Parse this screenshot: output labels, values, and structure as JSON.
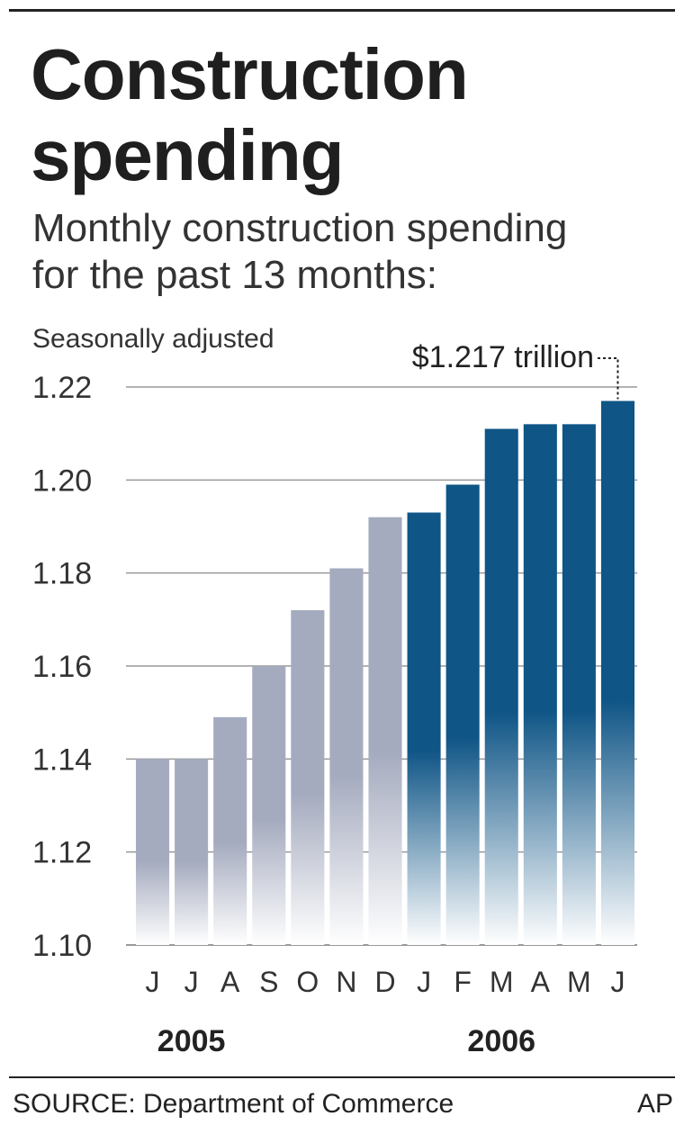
{
  "header": {
    "title_line1": "Construction",
    "title_line2": "spending",
    "subtitle_line1": "Monthly construction spending",
    "subtitle_line2": "for the past 13 months:"
  },
  "footer": {
    "source": "SOURCE: Department of Commerce",
    "credit": "AP"
  },
  "colors": {
    "bars_2005": "#a5abbf",
    "bars_2006": "#0f5586",
    "gridline": "#999999",
    "text": "#222222"
  },
  "chart_data": {
    "type": "bar",
    "note": "Seasonally adjusted",
    "categories": [
      "J",
      "J",
      "A",
      "S",
      "O",
      "N",
      "D",
      "J",
      "F",
      "M",
      "A",
      "M",
      "J"
    ],
    "values": [
      1.14,
      1.14,
      1.149,
      1.16,
      1.172,
      1.181,
      1.192,
      1.193,
      1.199,
      1.211,
      1.212,
      1.212,
      1.217
    ],
    "year_groups": [
      {
        "label": "2005",
        "start": 0,
        "end": 6
      },
      {
        "label": "2006",
        "start": 7,
        "end": 12
      }
    ],
    "ylim": [
      1.1,
      1.22
    ],
    "yticks": [
      "1.10",
      "1.12",
      "1.14",
      "1.16",
      "1.18",
      "1.20",
      "1.22"
    ],
    "grid": true,
    "annotation": {
      "text": "$1.217 trillion",
      "index": 12
    }
  }
}
